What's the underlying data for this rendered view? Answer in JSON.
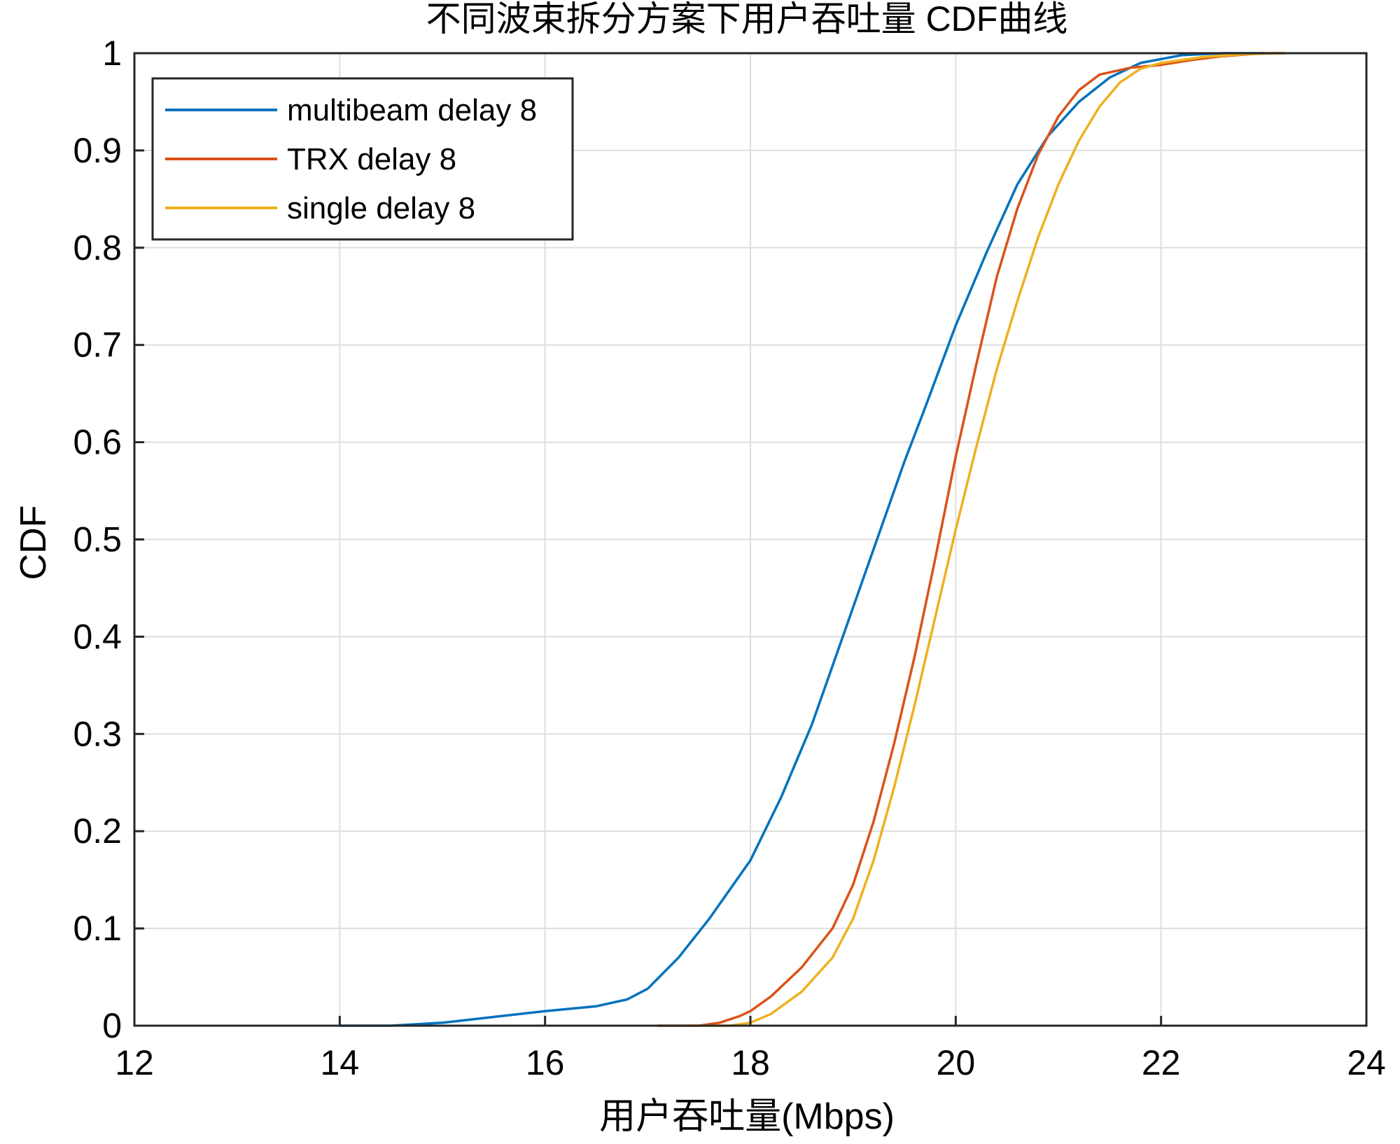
{
  "chart_data": {
    "type": "line",
    "title": "不同波束拆分方案下用户吞吐量 CDF曲线",
    "xlabel": "用户吞吐量(Mbps)",
    "ylabel": "CDF",
    "xlim": [
      12,
      24
    ],
    "ylim": [
      0,
      1
    ],
    "xticks": [
      "12",
      "14",
      "16",
      "18",
      "20",
      "22",
      "24"
    ],
    "yticks": [
      "0",
      "0.1",
      "0.2",
      "0.3",
      "0.4",
      "0.5",
      "0.6",
      "0.7",
      "0.8",
      "0.9",
      "1"
    ],
    "grid": true,
    "legend_position": "top-left",
    "series": [
      {
        "name": "multibeam delay 8",
        "color": "#0072BD",
        "x": [
          14.0,
          14.5,
          15.0,
          15.5,
          16.0,
          16.5,
          16.8,
          17.0,
          17.3,
          17.6,
          18.0,
          18.3,
          18.6,
          18.9,
          19.1,
          19.3,
          19.5,
          19.7,
          20.0,
          20.3,
          20.6,
          20.9,
          21.2,
          21.5,
          21.8,
          22.2,
          22.6,
          23.0
        ],
        "y": [
          0.0,
          0.0,
          0.003,
          0.009,
          0.015,
          0.02,
          0.027,
          0.038,
          0.07,
          0.11,
          0.17,
          0.235,
          0.31,
          0.4,
          0.46,
          0.52,
          0.58,
          0.635,
          0.72,
          0.795,
          0.865,
          0.915,
          0.95,
          0.975,
          0.99,
          0.998,
          1.0,
          1.0
        ]
      },
      {
        "name": "TRX delay 8",
        "color": "#D95319",
        "x": [
          17.1,
          17.5,
          17.7,
          17.9,
          18.0,
          18.2,
          18.5,
          18.8,
          19.0,
          19.2,
          19.4,
          19.6,
          19.8,
          20.0,
          20.2,
          20.4,
          20.6,
          20.8,
          21.0,
          21.2,
          21.4,
          21.7,
          22.0,
          22.3,
          22.6,
          23.0,
          23.2
        ],
        "y": [
          0.0,
          0.0,
          0.003,
          0.01,
          0.015,
          0.03,
          0.06,
          0.1,
          0.145,
          0.21,
          0.29,
          0.38,
          0.48,
          0.585,
          0.68,
          0.77,
          0.84,
          0.895,
          0.935,
          0.962,
          0.978,
          0.985,
          0.988,
          0.993,
          0.997,
          1.0,
          1.0
        ]
      },
      {
        "name": "single delay 8",
        "color": "#EDB120",
        "x": [
          17.4,
          17.8,
          18.0,
          18.2,
          18.5,
          18.8,
          19.0,
          19.2,
          19.4,
          19.6,
          19.8,
          20.0,
          20.2,
          20.4,
          20.6,
          20.8,
          21.0,
          21.2,
          21.4,
          21.6,
          21.8,
          22.0,
          22.4,
          22.8,
          23.2
        ],
        "y": [
          0.0,
          0.0,
          0.003,
          0.012,
          0.035,
          0.07,
          0.11,
          0.17,
          0.245,
          0.33,
          0.42,
          0.51,
          0.595,
          0.675,
          0.745,
          0.81,
          0.865,
          0.91,
          0.945,
          0.97,
          0.984,
          0.99,
          0.996,
          0.999,
          1.0
        ]
      }
    ]
  }
}
